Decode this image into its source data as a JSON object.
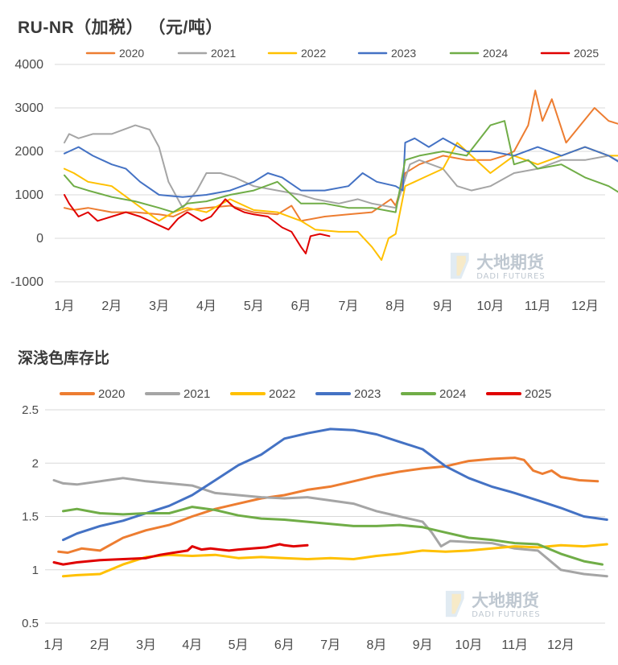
{
  "chart_data": [
    {
      "type": "line",
      "title": "RU-NR（加税）（元/吨）",
      "xlabel": "",
      "ylabel": "",
      "ylim": [
        -1000,
        4000
      ],
      "yticks": [
        "4000",
        "3000",
        "2000",
        "1000",
        "0",
        "-1000"
      ],
      "xticks": [
        "1月",
        "2月",
        "3月",
        "4月",
        "5月",
        "6月",
        "7月",
        "8月",
        "9月",
        "10月",
        "11月",
        "12月"
      ],
      "grid": "horizontal",
      "legend": "top",
      "series": [
        {
          "name": "2020",
          "color": "#ED7D31",
          "x": [
            1.0,
            1.2,
            1.5,
            2.0,
            2.5,
            3.0,
            3.3,
            3.6,
            4.0,
            4.5,
            5.0,
            5.5,
            5.8,
            6.0,
            6.5,
            7.0,
            7.5,
            7.9,
            8.0,
            8.2,
            8.5,
            9.0,
            9.5,
            10.0,
            10.3,
            10.5,
            10.8,
            10.95,
            11.1,
            11.3,
            11.6,
            11.9,
            12.2,
            12.5,
            12.8,
            13.0
          ],
          "values": [
            700,
            650,
            700,
            600,
            600,
            550,
            500,
            650,
            700,
            750,
            600,
            550,
            750,
            400,
            500,
            550,
            600,
            900,
            750,
            1500,
            1700,
            1900,
            1800,
            1800,
            1900,
            2000,
            2600,
            3400,
            2700,
            3200,
            2200,
            2600,
            3000,
            2700,
            2600,
            2300
          ]
        },
        {
          "name": "2021",
          "color": "#A5A5A5",
          "x": [
            1.0,
            1.1,
            1.3,
            1.6,
            2.0,
            2.5,
            2.8,
            3.0,
            3.2,
            3.5,
            3.8,
            4.0,
            4.3,
            4.6,
            5.0,
            5.5,
            6.0,
            6.3,
            6.8,
            7.2,
            7.5,
            8.0,
            8.3,
            8.5,
            9.0,
            9.3,
            9.6,
            10.0,
            10.5,
            11.0,
            11.5,
            12.0,
            12.5,
            13.0
          ],
          "values": [
            2200,
            2400,
            2300,
            2400,
            2400,
            2600,
            2500,
            2100,
            1300,
            700,
            1100,
            1500,
            1500,
            1400,
            1200,
            1100,
            1000,
            900,
            800,
            900,
            800,
            700,
            1700,
            1800,
            1600,
            1200,
            1100,
            1200,
            1500,
            1600,
            1800,
            1800,
            1900,
            1600
          ]
        },
        {
          "name": "2022",
          "color": "#FFC000",
          "x": [
            1.0,
            1.2,
            1.5,
            2.0,
            2.5,
            3.0,
            3.3,
            3.6,
            4.0,
            4.5,
            5.0,
            5.5,
            6.0,
            6.3,
            6.8,
            7.2,
            7.5,
            7.7,
            7.85,
            8.0,
            8.2,
            8.4,
            8.6,
            9.0,
            9.3,
            9.6,
            10.0,
            10.5,
            11.0,
            11.5,
            12.0,
            12.5,
            13.0
          ],
          "values": [
            1600,
            1500,
            1300,
            1200,
            800,
            400,
            600,
            700,
            600,
            900,
            650,
            600,
            400,
            200,
            150,
            150,
            -200,
            -500,
            0,
            100,
            1200,
            1300,
            1400,
            1600,
            2200,
            1900,
            1500,
            1900,
            1700,
            1900,
            2100,
            1900,
            1900
          ]
        },
        {
          "name": "2023",
          "color": "#4472C4",
          "x": [
            1.0,
            1.1,
            1.3,
            1.6,
            2.0,
            2.3,
            2.6,
            3.0,
            3.5,
            4.0,
            4.5,
            5.0,
            5.3,
            5.6,
            6.0,
            6.5,
            7.0,
            7.3,
            7.6,
            8.0,
            8.15,
            8.2,
            8.4,
            8.7,
            9.0,
            9.5,
            10.0,
            10.5,
            11.0,
            11.5,
            12.0,
            12.5,
            12.8,
            13.0
          ],
          "values": [
            1950,
            2000,
            2100,
            1900,
            1700,
            1600,
            1300,
            1000,
            950,
            1000,
            1100,
            1300,
            1500,
            1400,
            1100,
            1100,
            1200,
            1500,
            1300,
            1200,
            1100,
            2200,
            2300,
            2100,
            2300,
            2000,
            2000,
            1900,
            2100,
            1900,
            2100,
            1900,
            1700,
            1600
          ]
        },
        {
          "name": "2024",
          "color": "#70AD47",
          "x": [
            1.0,
            1.2,
            1.5,
            2.0,
            2.5,
            3.0,
            3.3,
            3.6,
            4.0,
            4.5,
            5.0,
            5.5,
            6.0,
            6.5,
            7.0,
            7.5,
            8.0,
            8.2,
            8.5,
            9.0,
            9.5,
            10.0,
            10.3,
            10.5,
            10.8,
            11.0,
            11.5,
            12.0,
            12.5,
            12.8,
            13.0
          ],
          "values": [
            1450,
            1200,
            1100,
            950,
            850,
            700,
            600,
            800,
            850,
            1000,
            1100,
            1300,
            800,
            800,
            700,
            700,
            600,
            1800,
            1900,
            2000,
            1900,
            2600,
            2700,
            1700,
            1800,
            1600,
            1700,
            1400,
            1200,
            1000,
            1000
          ]
        },
        {
          "name": "2025",
          "color": "#E00000",
          "x": [
            1.0,
            1.1,
            1.3,
            1.5,
            1.7,
            2.0,
            2.3,
            2.6,
            3.0,
            3.2,
            3.4,
            3.6,
            3.9,
            4.1,
            4.4,
            4.6,
            4.8,
            5.0,
            5.3,
            5.6,
            5.8,
            6.0,
            6.1,
            6.2,
            6.4,
            6.6
          ],
          "values": [
            1000,
            800,
            500,
            600,
            400,
            500,
            600,
            500,
            300,
            200,
            450,
            600,
            400,
            500,
            900,
            700,
            600,
            550,
            500,
            250,
            150,
            -200,
            -350,
            50,
            100,
            50
          ]
        }
      ]
    },
    {
      "type": "line",
      "title": "深浅色库存比",
      "xlabel": "",
      "ylabel": "",
      "ylim": [
        0.5,
        2.5
      ],
      "yticks": [
        "2.5",
        "2",
        "1.5",
        "1",
        "0.5"
      ],
      "xticks": [
        "1月",
        "2月",
        "3月",
        "4月",
        "5月",
        "6月",
        "7月",
        "8月",
        "9月",
        "10月",
        "11月",
        "12月"
      ],
      "grid": "horizontal",
      "legend": "top",
      "series": [
        {
          "name": "2020",
          "color": "#ED7D31",
          "x": [
            1.1,
            1.3,
            1.6,
            2.0,
            2.5,
            3.0,
            3.5,
            4.0,
            4.5,
            5.0,
            5.5,
            6.0,
            6.5,
            7.0,
            7.5,
            8.0,
            8.5,
            9.0,
            9.5,
            10.0,
            10.5,
            11.0,
            11.2,
            11.4,
            11.6,
            11.8,
            12.0,
            12.4,
            12.8
          ],
          "values": [
            1.17,
            1.16,
            1.2,
            1.18,
            1.3,
            1.37,
            1.42,
            1.5,
            1.57,
            1.62,
            1.67,
            1.7,
            1.75,
            1.78,
            1.83,
            1.88,
            1.92,
            1.95,
            1.97,
            2.02,
            2.04,
            2.05,
            2.03,
            1.93,
            1.9,
            1.93,
            1.87,
            1.84,
            1.83
          ]
        },
        {
          "name": "2021",
          "color": "#A5A5A5",
          "x": [
            1.0,
            1.2,
            1.5,
            2.0,
            2.5,
            3.0,
            3.5,
            4.0,
            4.5,
            5.0,
            5.5,
            6.0,
            6.5,
            7.0,
            7.5,
            8.0,
            8.5,
            9.0,
            9.2,
            9.4,
            9.6,
            10.0,
            10.5,
            11.0,
            11.5,
            12.0,
            12.5,
            13.0
          ],
          "values": [
            1.84,
            1.81,
            1.8,
            1.83,
            1.86,
            1.83,
            1.81,
            1.79,
            1.72,
            1.7,
            1.68,
            1.67,
            1.68,
            1.65,
            1.62,
            1.55,
            1.5,
            1.45,
            1.35,
            1.22,
            1.27,
            1.26,
            1.25,
            1.2,
            1.18,
            1.0,
            0.96,
            0.94
          ]
        },
        {
          "name": "2022",
          "color": "#FFC000",
          "x": [
            1.2,
            1.5,
            2.0,
            2.5,
            3.0,
            3.5,
            4.0,
            4.5,
            5.0,
            5.5,
            6.0,
            6.5,
            7.0,
            7.5,
            8.0,
            8.5,
            9.0,
            9.5,
            10.0,
            10.5,
            11.0,
            11.5,
            12.0,
            12.5,
            13.0
          ],
          "values": [
            0.94,
            0.95,
            0.96,
            1.05,
            1.12,
            1.14,
            1.13,
            1.14,
            1.11,
            1.12,
            1.11,
            1.1,
            1.11,
            1.1,
            1.13,
            1.15,
            1.18,
            1.17,
            1.18,
            1.2,
            1.22,
            1.21,
            1.23,
            1.22,
            1.24
          ]
        },
        {
          "name": "2023",
          "color": "#4472C4",
          "x": [
            1.2,
            1.5,
            2.0,
            2.5,
            3.0,
            3.5,
            4.0,
            4.5,
            5.0,
            5.5,
            6.0,
            6.5,
            7.0,
            7.5,
            8.0,
            8.5,
            9.0,
            9.5,
            10.0,
            10.5,
            11.0,
            11.5,
            12.0,
            12.5,
            13.0
          ],
          "values": [
            1.28,
            1.34,
            1.41,
            1.46,
            1.53,
            1.6,
            1.7,
            1.84,
            1.98,
            2.08,
            2.23,
            2.28,
            2.32,
            2.31,
            2.27,
            2.2,
            2.13,
            1.97,
            1.86,
            1.78,
            1.72,
            1.65,
            1.58,
            1.5,
            1.47
          ]
        },
        {
          "name": "2024",
          "color": "#70AD47",
          "x": [
            1.2,
            1.5,
            2.0,
            2.5,
            3.0,
            3.5,
            4.0,
            4.5,
            5.0,
            5.5,
            6.0,
            6.5,
            7.0,
            7.5,
            8.0,
            8.5,
            9.0,
            9.5,
            10.0,
            10.5,
            11.0,
            11.5,
            12.0,
            12.5,
            12.9
          ],
          "values": [
            1.55,
            1.57,
            1.53,
            1.52,
            1.53,
            1.53,
            1.59,
            1.56,
            1.51,
            1.48,
            1.47,
            1.45,
            1.43,
            1.41,
            1.41,
            1.42,
            1.4,
            1.35,
            1.3,
            1.28,
            1.25,
            1.24,
            1.15,
            1.08,
            1.05
          ]
        },
        {
          "name": "2025",
          "color": "#E00000",
          "x": [
            1.0,
            1.2,
            1.5,
            2.0,
            2.5,
            3.0,
            3.3,
            3.6,
            3.9,
            4.0,
            4.2,
            4.4,
            4.6,
            4.8,
            5.0,
            5.3,
            5.6,
            5.9,
            6.0,
            6.2,
            6.5
          ],
          "values": [
            1.07,
            1.05,
            1.07,
            1.09,
            1.1,
            1.11,
            1.14,
            1.16,
            1.18,
            1.22,
            1.19,
            1.2,
            1.19,
            1.18,
            1.19,
            1.2,
            1.21,
            1.24,
            1.23,
            1.22,
            1.23
          ]
        }
      ]
    }
  ],
  "titles": {
    "chart1": "RU-NR（加税）  （元/吨）",
    "chart2": "深浅色库存比"
  },
  "watermark": {
    "cn": "大地期货",
    "en": "DADI FUTURES"
  }
}
